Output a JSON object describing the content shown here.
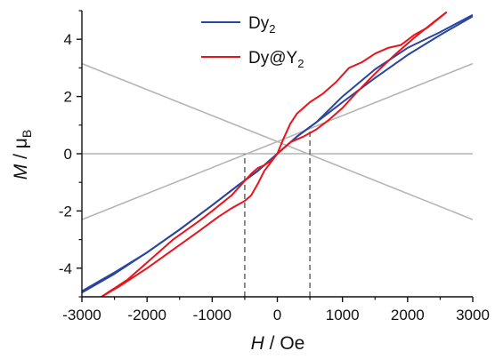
{
  "chart_data": {
    "type": "line",
    "title": "",
    "xlabel": {
      "italic": "H",
      "rest": " / Oe"
    },
    "ylabel": {
      "italic": "M",
      "rest": " / μ",
      "sub": "B"
    },
    "xlim": [
      -3000,
      3000
    ],
    "ylim": [
      -5,
      5
    ],
    "xticks": [
      -3000,
      -2000,
      -1000,
      0,
      1000,
      2000,
      3000
    ],
    "xtick_labels": [
      "-3000",
      "-2000",
      "-1000",
      "0",
      "1000",
      "2000",
      "3000"
    ],
    "yticks": [
      -4,
      -2,
      0,
      2,
      4
    ],
    "ytick_labels": [
      "-4",
      "-2",
      "0",
      "2",
      "4"
    ],
    "legend": {
      "position": "top-center",
      "entries": [
        {
          "base": "Dy",
          "sub": "2",
          "suffix": "",
          "color": "#2a45a0"
        },
        {
          "base": "Dy@Y",
          "sub": "2",
          "suffix": "",
          "color": "#e8141c"
        }
      ]
    },
    "series": [
      {
        "name": "Dy2",
        "color": "#2a45a0",
        "segments": [
          {
            "x": [
              -3000,
              -2500,
              -2000,
              -1500,
              -1000,
              -600,
              -300,
              -100,
              0,
              100,
              300,
              600,
              1000,
              1500,
              2000,
              2500,
              3000
            ],
            "y": [
              -4.85,
              -4.2,
              -3.45,
              -2.65,
              -1.8,
              -1.1,
              -0.6,
              -0.2,
              0.0,
              0.2,
              0.6,
              1.1,
              1.8,
              2.65,
              3.45,
              4.15,
              4.8
            ]
          },
          {
            "x": [
              -3000,
              -2500,
              -2000,
              -1500,
              -1000,
              -600,
              -300,
              -100,
              0,
              100,
              300,
              600,
              1000,
              1500,
              2000,
              2500,
              3000
            ],
            "y": [
              -4.8,
              -4.15,
              -3.45,
              -2.65,
              -1.8,
              -1.1,
              -0.6,
              -0.2,
              0.0,
              0.2,
              0.6,
              1.1,
              2.0,
              2.95,
              3.7,
              4.25,
              4.85
            ]
          }
        ]
      },
      {
        "name": "Dy@Y2",
        "color": "#e8141c",
        "segments": [
          {
            "x": [
              -2700,
              -2300,
              -2000,
              -1600,
              -1200,
              -1000,
              -700,
              -500,
              -400,
              -300,
              -200,
              -100,
              0,
              100,
              200,
              300,
              500,
              700,
              900,
              1100,
              1300,
              1500,
              1700,
              1900,
              2100,
              2300,
              2600
            ],
            "y": [
              -5.0,
              -4.4,
              -3.8,
              -3.0,
              -2.35,
              -2.0,
              -1.45,
              -0.95,
              -0.7,
              -0.5,
              -0.4,
              -0.25,
              0.0,
              0.55,
              1.05,
              1.4,
              1.8,
              2.1,
              2.5,
              3.0,
              3.2,
              3.5,
              3.7,
              3.8,
              4.15,
              4.4,
              4.95
            ]
          },
          {
            "x": [
              -2700,
              -2400,
              -2000,
              -1600,
              -1200,
              -900,
              -700,
              -500,
              -400,
              -300,
              -200,
              -100,
              0,
              200,
              400,
              600,
              800,
              1000,
              1200,
              1500,
              1800,
              2100,
              2400,
              2600
            ],
            "y": [
              -5.0,
              -4.6,
              -4.0,
              -3.35,
              -2.7,
              -2.2,
              -1.9,
              -1.65,
              -1.45,
              -1.05,
              -0.6,
              -0.3,
              0.0,
              0.4,
              0.6,
              0.85,
              1.2,
              1.6,
              2.1,
              2.8,
              3.45,
              4.05,
              4.6,
              4.95
            ]
          }
        ]
      }
    ],
    "guide_lines": {
      "color": "#b5b5b5",
      "lines": [
        {
          "x": [
            -3000,
            3000
          ],
          "y": [
            3.15,
            -2.3
          ]
        },
        {
          "x": [
            -3000,
            3000
          ],
          "y": [
            -2.3,
            3.15
          ]
        },
        {
          "x": [
            -3000,
            3000
          ],
          "y": [
            0,
            0
          ]
        }
      ]
    },
    "dashed_lines": {
      "color": "#707070",
      "lines": [
        {
          "x": [
            -500,
            -500
          ],
          "y": [
            -5,
            0
          ]
        },
        {
          "x": [
            500,
            500
          ],
          "y": [
            -5,
            0.85
          ]
        }
      ]
    }
  }
}
